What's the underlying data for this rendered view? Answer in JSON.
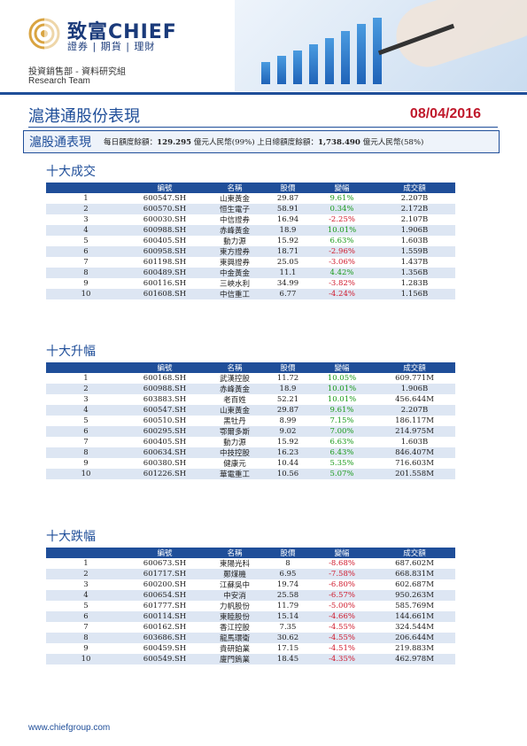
{
  "brand": {
    "name_cn": "致富",
    "name_en": "CHIEF",
    "tagline": "證券 | 期貨 | 理財",
    "department": "投資銷售部 - 資料研究組",
    "team": "Research Team",
    "color": "#1f4e99"
  },
  "report": {
    "title": "滬港通股份表現",
    "date": "08/04/2016"
  },
  "quota": {
    "label": "滬股通表現",
    "text_prefix": "每日額度餘額：",
    "daily_balance": "129.295",
    "daily_suffix": " 億元人民幣(99%)    上日總額度餘額：",
    "total_balance": "1,738.490",
    "total_suffix": " 億元人民幣(58%)"
  },
  "columns": [
    "編號",
    "名稱",
    "股價",
    "變幅",
    "成交額"
  ],
  "sections": [
    {
      "title": "十大成交",
      "rows": [
        [
          "1",
          "600547.SH",
          "山東黃金",
          "29.87",
          "9.61%",
          "2.207B"
        ],
        [
          "2",
          "600570.SH",
          "恒生電子",
          "58.91",
          "0.34%",
          "2.172B"
        ],
        [
          "3",
          "600030.SH",
          "中信證券",
          "16.94",
          "-2.25%",
          "2.107B"
        ],
        [
          "4",
          "600988.SH",
          "赤峰黃金",
          "18.9",
          "10.01%",
          "1.906B"
        ],
        [
          "5",
          "600405.SH",
          "動力源",
          "15.92",
          "6.63%",
          "1.603B"
        ],
        [
          "6",
          "600958.SH",
          "東方證券",
          "18.71",
          "-2.96%",
          "1.559B"
        ],
        [
          "7",
          "601198.SH",
          "東興證券",
          "25.05",
          "-3.06%",
          "1.437B"
        ],
        [
          "8",
          "600489.SH",
          "中金黃金",
          "11.1",
          "4.42%",
          "1.356B"
        ],
        [
          "9",
          "600116.SH",
          "三峽水利",
          "34.99",
          "-3.82%",
          "1.283B"
        ],
        [
          "10",
          "601608.SH",
          "中信重工",
          "6.77",
          "-4.24%",
          "1.156B"
        ]
      ]
    },
    {
      "title": "十大升幅",
      "rows": [
        [
          "1",
          "600168.SH",
          "武漢控股",
          "11.72",
          "10.05%",
          "609.771M"
        ],
        [
          "2",
          "600988.SH",
          "赤峰黃金",
          "18.9",
          "10.01%",
          "1.906B"
        ],
        [
          "3",
          "603883.SH",
          "老百姓",
          "52.21",
          "10.01%",
          "456.644M"
        ],
        [
          "4",
          "600547.SH",
          "山東黃金",
          "29.87",
          "9.61%",
          "2.207B"
        ],
        [
          "5",
          "600510.SH",
          "黑牡丹",
          "8.99",
          "7.15%",
          "186.117M"
        ],
        [
          "6",
          "600295.SH",
          "鄂爾多斯",
          "9.02",
          "7.00%",
          "214.975M"
        ],
        [
          "7",
          "600405.SH",
          "動力源",
          "15.92",
          "6.63%",
          "1.603B"
        ],
        [
          "8",
          "600634.SH",
          "中技控股",
          "16.23",
          "6.43%",
          "846.407M"
        ],
        [
          "9",
          "600380.SH",
          "健康元",
          "10.44",
          "5.35%",
          "716.603M"
        ],
        [
          "10",
          "601226.SH",
          "華電重工",
          "10.56",
          "5.07%",
          "201.558M"
        ]
      ]
    },
    {
      "title": "十大跌幅",
      "rows": [
        [
          "1",
          "600673.SH",
          "東陽光科",
          "8",
          "-8.68%",
          "687.602M"
        ],
        [
          "2",
          "601717.SH",
          "鄭煤機",
          "6.95",
          "-7.58%",
          "668.831M"
        ],
        [
          "3",
          "600200.SH",
          "江蘇吳中",
          "19.74",
          "-6.80%",
          "602.687M"
        ],
        [
          "4",
          "600654.SH",
          "中安消",
          "25.58",
          "-6.57%",
          "950.263M"
        ],
        [
          "5",
          "601777.SH",
          "力帆股份",
          "11.79",
          "-5.00%",
          "585.769M"
        ],
        [
          "6",
          "600114.SH",
          "東睦股份",
          "15.14",
          "-4.66%",
          "144.661M"
        ],
        [
          "7",
          "600162.SH",
          "香江控股",
          "7.35",
          "-4.55%",
          "324.544M"
        ],
        [
          "8",
          "603686.SH",
          "龍馬環衛",
          "30.62",
          "-4.55%",
          "206.644M"
        ],
        [
          "9",
          "600459.SH",
          "貴研鉑業",
          "17.15",
          "-4.51%",
          "219.883M"
        ],
        [
          "10",
          "600549.SH",
          "廈門鎢業",
          "18.45",
          "-4.35%",
          "462.978M"
        ]
      ]
    }
  ],
  "footer": {
    "url": "www.chiefgroup.com"
  }
}
